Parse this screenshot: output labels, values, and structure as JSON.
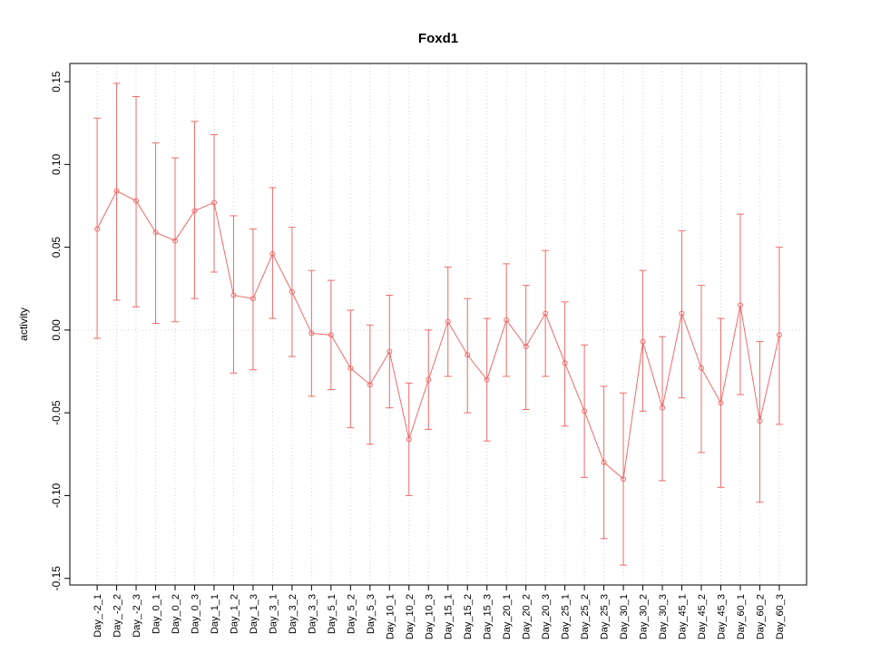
{
  "chart_data": {
    "type": "line",
    "title": "Foxd1",
    "xlabel": "",
    "ylabel": "activity",
    "ylim": [
      -0.154,
      0.161
    ],
    "yticks": [
      -0.15,
      -0.1,
      -0.05,
      0.0,
      0.05,
      0.1,
      0.15
    ],
    "grid": "vertical dotted gridline at every category, dotted horizontal line at y=0",
    "legend": "none",
    "marker": "open-circle",
    "error_bars": "capped, symmetric caps",
    "color": "#ee6b6b",
    "grid_color": "#d4d4d4",
    "categories": [
      "Day_-2_1",
      "Day_-2_2",
      "Day_-2_3",
      "Day_0_1",
      "Day_0_2",
      "Day_0_3",
      "Day_1_1",
      "Day_1_2",
      "Day_1_3",
      "Day_3_1",
      "Day_3_2",
      "Day_3_3",
      "Day_5_1",
      "Day_5_2",
      "Day_5_3",
      "Day_10_1",
      "Day_10_2",
      "Day_10_3",
      "Day_15_1",
      "Day_15_2",
      "Day_15_3",
      "Day_20_1",
      "Day_20_2",
      "Day_20_3",
      "Day_25_1",
      "Day_25_2",
      "Day_25_3",
      "Day_30_1",
      "Day_30_2",
      "Day_30_3",
      "Day_45_1",
      "Day_45_2",
      "Day_45_3",
      "Day_60_1",
      "Day_60_2",
      "Day_60_3"
    ],
    "values": [
      0.061,
      0.084,
      0.078,
      0.059,
      0.054,
      0.072,
      0.077,
      0.021,
      0.019,
      0.046,
      0.023,
      -0.002,
      -0.003,
      -0.023,
      -0.033,
      -0.013,
      -0.066,
      -0.03,
      0.005,
      -0.015,
      -0.03,
      0.006,
      -0.01,
      0.01,
      -0.02,
      -0.049,
      -0.08,
      -0.09,
      -0.007,
      -0.047,
      0.01,
      -0.023,
      -0.044,
      0.015,
      -0.055,
      -0.003
    ],
    "error_low": [
      -0.005,
      0.018,
      0.014,
      0.004,
      0.005,
      0.019,
      0.035,
      -0.026,
      -0.024,
      0.007,
      -0.016,
      -0.04,
      -0.036,
      -0.059,
      -0.069,
      -0.047,
      -0.1,
      -0.06,
      -0.028,
      -0.05,
      -0.067,
      -0.028,
      -0.048,
      -0.028,
      -0.058,
      -0.089,
      -0.126,
      -0.142,
      -0.049,
      -0.091,
      -0.041,
      -0.074,
      -0.095,
      -0.039,
      -0.104,
      -0.057
    ],
    "error_high": [
      0.128,
      0.149,
      0.141,
      0.113,
      0.104,
      0.126,
      0.118,
      0.069,
      0.061,
      0.086,
      0.062,
      0.036,
      0.03,
      0.012,
      0.003,
      0.021,
      -0.032,
      0.0,
      0.038,
      0.019,
      0.007,
      0.04,
      0.027,
      0.048,
      0.017,
      -0.009,
      -0.034,
      -0.038,
      0.036,
      -0.004,
      0.06,
      0.027,
      0.007,
      0.07,
      -0.007,
      0.05
    ]
  }
}
